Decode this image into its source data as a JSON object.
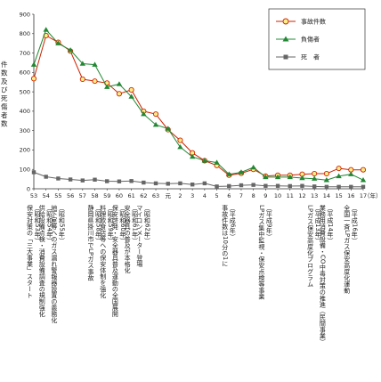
{
  "chart_data": {
    "type": "line",
    "ylabel": "件数及び死傷者数",
    "xlabel_unit": "（年）",
    "ylim": [
      0,
      900
    ],
    "yticks": [
      0,
      100,
      200,
      300,
      400,
      500,
      600,
      700,
      800,
      900
    ],
    "categories": [
      "53",
      "54",
      "55",
      "56",
      "57",
      "58",
      "59",
      "60",
      "61",
      "62",
      "63",
      "元",
      "2",
      "3",
      "4",
      "5",
      "6",
      "7",
      "8",
      "9",
      "10",
      "11",
      "12",
      "13",
      "14",
      "15",
      "16",
      "17"
    ],
    "legend_position": "top-right",
    "series": [
      {
        "name": "事故件数",
        "color": "#cc2200",
        "marker": "circle",
        "values": [
          568,
          790,
          755,
          710,
          565,
          555,
          545,
          490,
          510,
          400,
          385,
          305,
          250,
          185,
          145,
          120,
          70,
          80,
          100,
          65,
          70,
          70,
          75,
          78,
          78,
          105,
          98,
          98
        ]
      },
      {
        "name": "負傷者",
        "color": "#228833",
        "marker": "triangle",
        "values": [
          640,
          820,
          750,
          715,
          645,
          640,
          525,
          540,
          475,
          385,
          330,
          310,
          215,
          165,
          145,
          135,
          75,
          85,
          110,
          60,
          60,
          60,
          55,
          52,
          45,
          65,
          75,
          45
        ]
      },
      {
        "name": "死　者",
        "color": "#666666",
        "marker": "square",
        "values": [
          85,
          62,
          53,
          48,
          43,
          47,
          39,
          38,
          40,
          32,
          28,
          26,
          28,
          22,
          28,
          12,
          14,
          18,
          20,
          15,
          15,
          14,
          15,
          12,
          10,
          10,
          10,
          10
        ]
      }
    ],
    "annotations": [
      {
        "category": "53",
        "lines": [
          "（昭和53年）",
          "保安対策の「三大事業」スタート"
        ]
      },
      {
        "category": "54",
        "lines": [
          "（昭和54年）",
          "供給設備点検・消費設備調査の規制強化"
        ]
      },
      {
        "category": "55",
        "lines": [
          "（昭和55年）",
          "地下室等へのガス漏れ警報器設置の義務化"
        ]
      },
      {
        "category": "58",
        "lines": [
          "（昭和58年）",
          "静岡県掛川市でLPガス事故"
        ]
      },
      {
        "category": "59",
        "lines": [
          "（昭和59年）",
          "料理飲食店等への保安体制を強化"
        ]
      },
      {
        "category": "60",
        "lines": [
          "（昭和60年）",
          "保安啓発・安全器具普及運動の全国展開"
        ]
      },
      {
        "category": "61",
        "lines": [
          "（昭和61年）",
          "安全器具の普及が本格化"
        ]
      },
      {
        "category": "62",
        "lines": [
          "（昭和62年）",
          "マイコンメーター登場"
        ]
      },
      {
        "category": "6",
        "lines": [
          "（平成6年）",
          "事故件数は10分の1に"
        ]
      },
      {
        "category": "9",
        "lines": [
          "（平成9年）",
          "LPガス集中監視・保安点検等事業"
        ]
      },
      {
        "category": "13",
        "lines": [
          "（平成13年）",
          "LPガス保安高度化プログラム"
        ]
      },
      {
        "category": "14",
        "lines": [
          "（平成14年）",
          "業務用消費設備・CO中毒対策の推進（民間事業）"
        ]
      },
      {
        "category": "16",
        "lines": [
          "（平成16年）",
          "全国一斉LPガス保安高度化運動"
        ]
      }
    ]
  }
}
